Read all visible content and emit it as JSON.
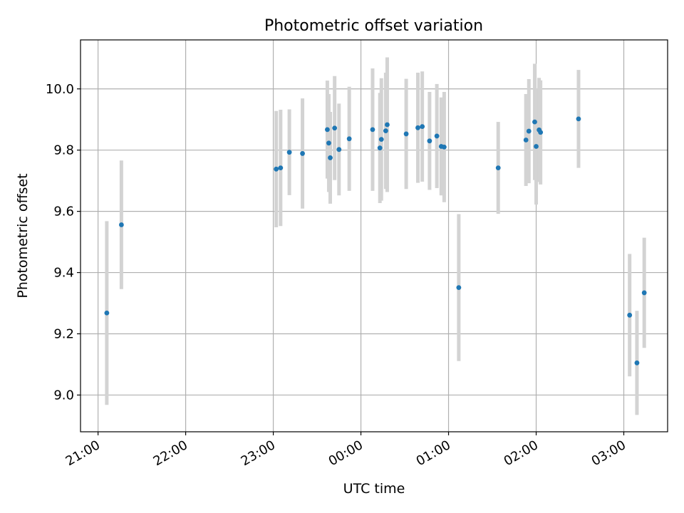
{
  "chart_data": {
    "type": "scatter",
    "title": "Photometric offset variation",
    "xlabel": "UTC time",
    "ylabel": "Photometric offset",
    "x_ticks": [
      "21:00",
      "22:00",
      "23:00",
      "00:00",
      "01:00",
      "02:00",
      "03:00"
    ],
    "y_ticks": [
      "9.0",
      "9.2",
      "9.4",
      "9.6",
      "9.8",
      "10.0"
    ],
    "y_tick_values": [
      9.0,
      9.2,
      9.4,
      9.6,
      9.8,
      10.0
    ],
    "ylim": [
      8.88,
      10.16
    ],
    "xlim": [
      "20:48",
      "03:30"
    ],
    "grid": true,
    "x_tick_rotation": "30°",
    "colors": {
      "point": "#1f77b4",
      "errorbar": "#d3d3d3",
      "grid": "#b0b0b0"
    },
    "points": [
      {
        "t": "21:06",
        "y": 9.268,
        "err": 0.3
      },
      {
        "t": "21:16",
        "y": 9.556,
        "err": 0.21
      },
      {
        "t": "23:02",
        "y": 9.738,
        "err": 0.19
      },
      {
        "t": "23:05",
        "y": 9.742,
        "err": 0.19
      },
      {
        "t": "23:11",
        "y": 9.793,
        "err": 0.14
      },
      {
        "t": "23:20",
        "y": 9.789,
        "err": 0.18
      },
      {
        "t": "23:37",
        "y": 9.867,
        "err": 0.16
      },
      {
        "t": "23:38",
        "y": 9.823,
        "err": 0.16
      },
      {
        "t": "23:39",
        "y": 9.775,
        "err": 0.15
      },
      {
        "t": "23:42",
        "y": 9.872,
        "err": 0.17
      },
      {
        "t": "23:45",
        "y": 9.802,
        "err": 0.15
      },
      {
        "t": "23:52",
        "y": 9.837,
        "err": 0.17
      },
      {
        "t": "00:08",
        "y": 9.867,
        "err": 0.2
      },
      {
        "t": "00:13",
        "y": 9.807,
        "err": 0.18
      },
      {
        "t": "00:14",
        "y": 9.835,
        "err": 0.2
      },
      {
        "t": "00:17",
        "y": 9.863,
        "err": 0.19
      },
      {
        "t": "00:18",
        "y": 9.883,
        "err": 0.22
      },
      {
        "t": "00:31",
        "y": 9.853,
        "err": 0.18
      },
      {
        "t": "00:39",
        "y": 9.873,
        "err": 0.18
      },
      {
        "t": "00:42",
        "y": 9.877,
        "err": 0.18
      },
      {
        "t": "00:47",
        "y": 9.83,
        "err": 0.16
      },
      {
        "t": "00:52",
        "y": 9.846,
        "err": 0.17
      },
      {
        "t": "00:55",
        "y": 9.812,
        "err": 0.16
      },
      {
        "t": "00:57",
        "y": 9.81,
        "err": 0.18
      },
      {
        "t": "01:07",
        "y": 9.351,
        "err": 0.24
      },
      {
        "t": "01:34",
        "y": 9.742,
        "err": 0.15
      },
      {
        "t": "01:53",
        "y": 9.833,
        "err": 0.15
      },
      {
        "t": "01:55",
        "y": 9.862,
        "err": 0.17
      },
      {
        "t": "01:59",
        "y": 9.892,
        "err": 0.19
      },
      {
        "t": "02:00",
        "y": 9.812,
        "err": 0.19
      },
      {
        "t": "02:02",
        "y": 9.866,
        "err": 0.17
      },
      {
        "t": "02:03",
        "y": 9.858,
        "err": 0.17
      },
      {
        "t": "02:29",
        "y": 9.902,
        "err": 0.16
      },
      {
        "t": "03:04",
        "y": 9.261,
        "err": 0.2
      },
      {
        "t": "03:09",
        "y": 9.105,
        "err": 0.17
      },
      {
        "t": "03:14",
        "y": 9.334,
        "err": 0.18
      }
    ]
  }
}
